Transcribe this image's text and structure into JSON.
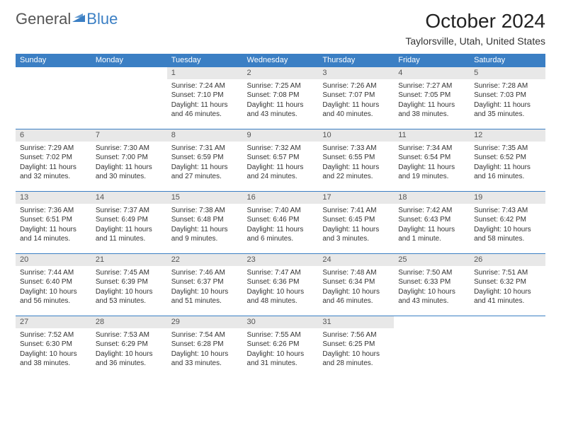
{
  "logo": {
    "textGray": "General",
    "textBlue": "Blue"
  },
  "title": "October 2024",
  "location": "Taylorsville, Utah, United States",
  "dayHeaders": [
    "Sunday",
    "Monday",
    "Tuesday",
    "Wednesday",
    "Thursday",
    "Friday",
    "Saturday"
  ],
  "colors": {
    "headerBg": "#3b7fc4",
    "headerText": "#ffffff",
    "dayNumBg": "#e8e8e8",
    "cellBorderTop": "#3b7fc4",
    "bodyText": "#333333"
  },
  "weeks": [
    [
      {
        "empty": true
      },
      {
        "empty": true
      },
      {
        "num": "1",
        "sunrise": "Sunrise: 7:24 AM",
        "sunset": "Sunset: 7:10 PM",
        "daylight1": "Daylight: 11 hours",
        "daylight2": "and 46 minutes."
      },
      {
        "num": "2",
        "sunrise": "Sunrise: 7:25 AM",
        "sunset": "Sunset: 7:08 PM",
        "daylight1": "Daylight: 11 hours",
        "daylight2": "and 43 minutes."
      },
      {
        "num": "3",
        "sunrise": "Sunrise: 7:26 AM",
        "sunset": "Sunset: 7:07 PM",
        "daylight1": "Daylight: 11 hours",
        "daylight2": "and 40 minutes."
      },
      {
        "num": "4",
        "sunrise": "Sunrise: 7:27 AM",
        "sunset": "Sunset: 7:05 PM",
        "daylight1": "Daylight: 11 hours",
        "daylight2": "and 38 minutes."
      },
      {
        "num": "5",
        "sunrise": "Sunrise: 7:28 AM",
        "sunset": "Sunset: 7:03 PM",
        "daylight1": "Daylight: 11 hours",
        "daylight2": "and 35 minutes."
      }
    ],
    [
      {
        "num": "6",
        "sunrise": "Sunrise: 7:29 AM",
        "sunset": "Sunset: 7:02 PM",
        "daylight1": "Daylight: 11 hours",
        "daylight2": "and 32 minutes."
      },
      {
        "num": "7",
        "sunrise": "Sunrise: 7:30 AM",
        "sunset": "Sunset: 7:00 PM",
        "daylight1": "Daylight: 11 hours",
        "daylight2": "and 30 minutes."
      },
      {
        "num": "8",
        "sunrise": "Sunrise: 7:31 AM",
        "sunset": "Sunset: 6:59 PM",
        "daylight1": "Daylight: 11 hours",
        "daylight2": "and 27 minutes."
      },
      {
        "num": "9",
        "sunrise": "Sunrise: 7:32 AM",
        "sunset": "Sunset: 6:57 PM",
        "daylight1": "Daylight: 11 hours",
        "daylight2": "and 24 minutes."
      },
      {
        "num": "10",
        "sunrise": "Sunrise: 7:33 AM",
        "sunset": "Sunset: 6:55 PM",
        "daylight1": "Daylight: 11 hours",
        "daylight2": "and 22 minutes."
      },
      {
        "num": "11",
        "sunrise": "Sunrise: 7:34 AM",
        "sunset": "Sunset: 6:54 PM",
        "daylight1": "Daylight: 11 hours",
        "daylight2": "and 19 minutes."
      },
      {
        "num": "12",
        "sunrise": "Sunrise: 7:35 AM",
        "sunset": "Sunset: 6:52 PM",
        "daylight1": "Daylight: 11 hours",
        "daylight2": "and 16 minutes."
      }
    ],
    [
      {
        "num": "13",
        "sunrise": "Sunrise: 7:36 AM",
        "sunset": "Sunset: 6:51 PM",
        "daylight1": "Daylight: 11 hours",
        "daylight2": "and 14 minutes."
      },
      {
        "num": "14",
        "sunrise": "Sunrise: 7:37 AM",
        "sunset": "Sunset: 6:49 PM",
        "daylight1": "Daylight: 11 hours",
        "daylight2": "and 11 minutes."
      },
      {
        "num": "15",
        "sunrise": "Sunrise: 7:38 AM",
        "sunset": "Sunset: 6:48 PM",
        "daylight1": "Daylight: 11 hours",
        "daylight2": "and 9 minutes."
      },
      {
        "num": "16",
        "sunrise": "Sunrise: 7:40 AM",
        "sunset": "Sunset: 6:46 PM",
        "daylight1": "Daylight: 11 hours",
        "daylight2": "and 6 minutes."
      },
      {
        "num": "17",
        "sunrise": "Sunrise: 7:41 AM",
        "sunset": "Sunset: 6:45 PM",
        "daylight1": "Daylight: 11 hours",
        "daylight2": "and 3 minutes."
      },
      {
        "num": "18",
        "sunrise": "Sunrise: 7:42 AM",
        "sunset": "Sunset: 6:43 PM",
        "daylight1": "Daylight: 11 hours",
        "daylight2": "and 1 minute."
      },
      {
        "num": "19",
        "sunrise": "Sunrise: 7:43 AM",
        "sunset": "Sunset: 6:42 PM",
        "daylight1": "Daylight: 10 hours",
        "daylight2": "and 58 minutes."
      }
    ],
    [
      {
        "num": "20",
        "sunrise": "Sunrise: 7:44 AM",
        "sunset": "Sunset: 6:40 PM",
        "daylight1": "Daylight: 10 hours",
        "daylight2": "and 56 minutes."
      },
      {
        "num": "21",
        "sunrise": "Sunrise: 7:45 AM",
        "sunset": "Sunset: 6:39 PM",
        "daylight1": "Daylight: 10 hours",
        "daylight2": "and 53 minutes."
      },
      {
        "num": "22",
        "sunrise": "Sunrise: 7:46 AM",
        "sunset": "Sunset: 6:37 PM",
        "daylight1": "Daylight: 10 hours",
        "daylight2": "and 51 minutes."
      },
      {
        "num": "23",
        "sunrise": "Sunrise: 7:47 AM",
        "sunset": "Sunset: 6:36 PM",
        "daylight1": "Daylight: 10 hours",
        "daylight2": "and 48 minutes."
      },
      {
        "num": "24",
        "sunrise": "Sunrise: 7:48 AM",
        "sunset": "Sunset: 6:34 PM",
        "daylight1": "Daylight: 10 hours",
        "daylight2": "and 46 minutes."
      },
      {
        "num": "25",
        "sunrise": "Sunrise: 7:50 AM",
        "sunset": "Sunset: 6:33 PM",
        "daylight1": "Daylight: 10 hours",
        "daylight2": "and 43 minutes."
      },
      {
        "num": "26",
        "sunrise": "Sunrise: 7:51 AM",
        "sunset": "Sunset: 6:32 PM",
        "daylight1": "Daylight: 10 hours",
        "daylight2": "and 41 minutes."
      }
    ],
    [
      {
        "num": "27",
        "sunrise": "Sunrise: 7:52 AM",
        "sunset": "Sunset: 6:30 PM",
        "daylight1": "Daylight: 10 hours",
        "daylight2": "and 38 minutes."
      },
      {
        "num": "28",
        "sunrise": "Sunrise: 7:53 AM",
        "sunset": "Sunset: 6:29 PM",
        "daylight1": "Daylight: 10 hours",
        "daylight2": "and 36 minutes."
      },
      {
        "num": "29",
        "sunrise": "Sunrise: 7:54 AM",
        "sunset": "Sunset: 6:28 PM",
        "daylight1": "Daylight: 10 hours",
        "daylight2": "and 33 minutes."
      },
      {
        "num": "30",
        "sunrise": "Sunrise: 7:55 AM",
        "sunset": "Sunset: 6:26 PM",
        "daylight1": "Daylight: 10 hours",
        "daylight2": "and 31 minutes."
      },
      {
        "num": "31",
        "sunrise": "Sunrise: 7:56 AM",
        "sunset": "Sunset: 6:25 PM",
        "daylight1": "Daylight: 10 hours",
        "daylight2": "and 28 minutes."
      },
      {
        "empty": true
      },
      {
        "empty": true
      }
    ]
  ]
}
